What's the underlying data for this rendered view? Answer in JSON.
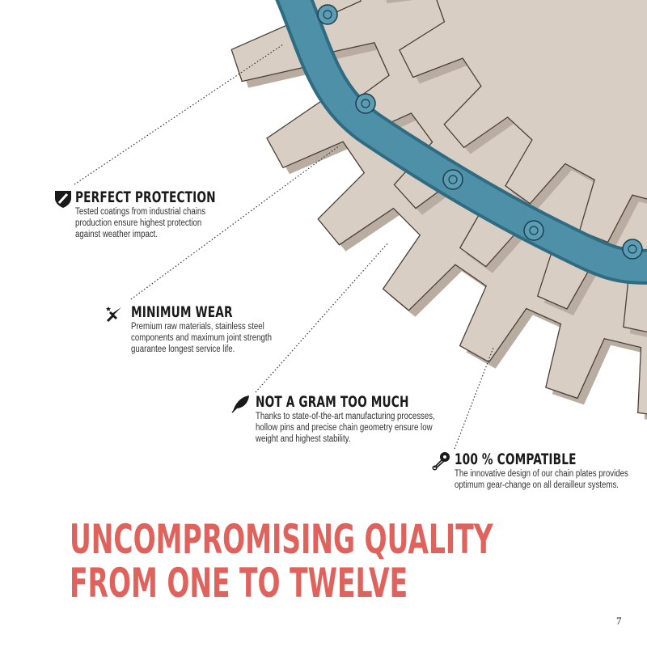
{
  "features": [
    {
      "icon": "shield-icon",
      "title": "PERFECT PROTECTION",
      "lines": [
        "Tested coatings from industrial chains",
        "production ensure highest protection",
        "against weather impact."
      ]
    },
    {
      "icon": "sword-icon",
      "title": "MINIMUM WEAR",
      "lines": [
        "Premium raw materials, stainless steel",
        "components and maximum joint strength",
        "guarantee longest service life."
      ]
    },
    {
      "icon": "feather-icon",
      "title": "NOT A GRAM TOO MUCH",
      "lines": [
        "Thanks to state-of-the-art manufacturing processes,",
        "hollow pins and precise chain geometry ensure low",
        "weight and highest stability."
      ]
    },
    {
      "icon": "safety-pin-icon",
      "title": "100 % COMPATIBLE",
      "lines": [
        "The innovative design of our chain plates provides",
        "optimum gear-change on all derailleur systems."
      ]
    }
  ],
  "headline": {
    "line1": "UNCOMPROMISING QUALITY",
    "line2": "FROM ONE TO TWELVE"
  },
  "page_number": "7",
  "colors": {
    "headline": "#df635c",
    "gear": "#d9cec4",
    "chain": "#4d90a8",
    "text": "#1a1a1a"
  }
}
